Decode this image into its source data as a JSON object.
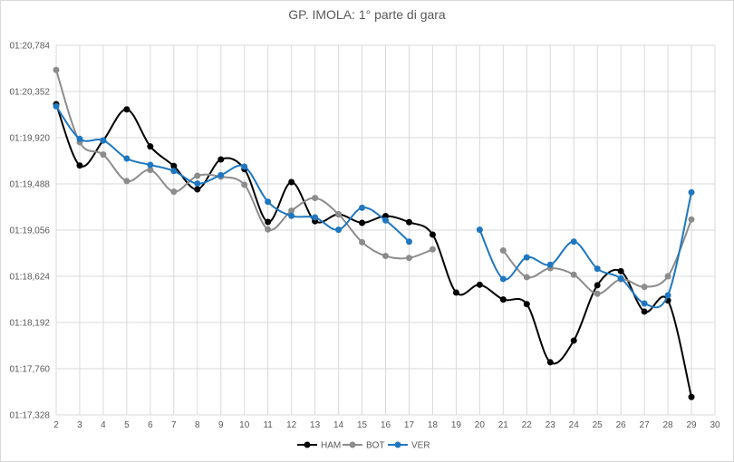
{
  "chart_data": {
    "type": "line",
    "title": "GP. IMOLA: 1° parte di gara",
    "xlabel": "",
    "ylabel": "",
    "x": [
      2,
      3,
      4,
      5,
      6,
      7,
      8,
      9,
      10,
      11,
      12,
      13,
      14,
      15,
      16,
      17,
      18,
      19,
      20,
      21,
      22,
      23,
      24,
      25,
      26,
      27,
      28,
      29
    ],
    "x_ticks": [
      "2",
      "3",
      "4",
      "5",
      "6",
      "7",
      "8",
      "9",
      "10",
      "11",
      "12",
      "13",
      "14",
      "15",
      "16",
      "17",
      "18",
      "19",
      "20",
      "21",
      "22",
      "23",
      "24",
      "25",
      "26",
      "27",
      "28",
      "29",
      "30"
    ],
    "xlim": [
      2,
      30
    ],
    "y_ticks": [
      "01:17,328",
      "01:17,760",
      "01:18,192",
      "01:18,624",
      "01:19,056",
      "01:19,488",
      "01:19,920",
      "01:20,352",
      "01:20,784"
    ],
    "ylim": [
      "01:17,328",
      "01:20,784"
    ],
    "grid": true,
    "smoothed": true,
    "legend_position": "bottom",
    "series": [
      {
        "name": "HAM",
        "color": "#000000",
        "values": [
          "01:20,233",
          "01:19,660",
          "01:19,895",
          "01:20,185",
          "01:19,838",
          "01:19,655",
          "01:19,437",
          "01:19,717",
          "01:19,626",
          "01:19,132",
          "01:19,505",
          "01:19,139",
          "01:19,204",
          "01:19,124",
          "01:19,187",
          "01:19,130",
          "01:19,014",
          "01:18,472",
          "01:18,545",
          "01:18,407",
          "01:18,364",
          "01:17,820",
          "01:18,023",
          "01:18,540",
          "01:18,672",
          "01:18,294",
          "01:18,398",
          "01:17,495"
        ]
      },
      {
        "name": "BOT",
        "color": "#8c8c8c",
        "values": [
          "01:20,553",
          "01:19,878",
          "01:19,762",
          "01:19,514",
          "01:19,618",
          "01:19,415",
          "01:19,564",
          "01:19,556",
          "01:19,480",
          "01:19,062",
          "01:19,237",
          "01:19,356",
          "01:19,204",
          "01:18,943",
          "01:18,814",
          "01:18,796",
          "01:18,876",
          null,
          null,
          "01:18,865",
          "01:18,616",
          "01:18,700",
          "01:18,639",
          "01:18,461",
          "01:18,596",
          "01:18,525",
          "01:18,624",
          "01:19,155"
        ]
      },
      {
        "name": "VER",
        "color": "#1f77c0",
        "values": [
          "01:20,214",
          "01:19,909",
          "01:19,895",
          "01:19,725",
          "01:19,666",
          "01:19,609",
          "01:19,491",
          "01:19,570",
          "01:19,649",
          "01:19,321",
          "01:19,189",
          "01:19,175",
          "01:19,059",
          "01:19,265",
          "01:19,147",
          "01:18,948",
          null,
          null,
          "01:19,059",
          "01:18,599",
          "01:18,801",
          "01:18,732",
          "01:18,948",
          "01:18,695",
          "01:18,605",
          "01:18,370",
          "01:18,446",
          "01:19,409"
        ]
      }
    ]
  }
}
